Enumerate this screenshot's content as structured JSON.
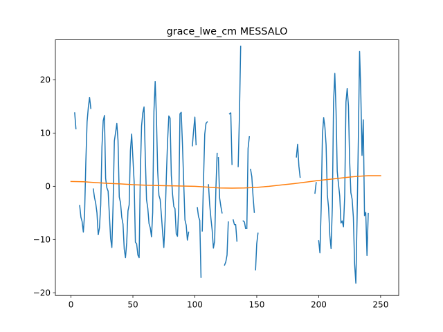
{
  "chart_data": {
    "type": "line",
    "title": "grace_lwe_cm MESSALO",
    "xlabel": "",
    "ylabel": "",
    "xlim": [
      -12.6,
      264.6
    ],
    "ylim": [
      -20.5,
      27.5
    ],
    "xticks": [
      0,
      50,
      100,
      150,
      200,
      250
    ],
    "yticks": [
      -20,
      -10,
      0,
      10,
      20
    ],
    "xtick_labels": [
      "0",
      "50",
      "100",
      "150",
      "200",
      "250"
    ],
    "ytick_labels": [
      "−20",
      "−10",
      "0",
      "10",
      "20"
    ],
    "grid": false,
    "legend": "none",
    "series": [
      {
        "color": "#1f77b4",
        "segments": [
          [
            [
              3,
              13.8
            ],
            [
              4,
              10.8
            ]
          ],
          [
            [
              7,
              -3.6
            ],
            [
              8,
              -5.8
            ],
            [
              9,
              -6.6
            ],
            [
              10,
              -8.6
            ],
            [
              11,
              -5.2
            ],
            [
              12,
              4.5
            ],
            [
              13,
              12.1
            ],
            [
              14,
              14.8
            ],
            [
              15,
              16.7
            ],
            [
              16,
              14.6
            ]
          ],
          [
            [
              18,
              -0.5
            ],
            [
              19,
              -2.1
            ],
            [
              20,
              -3.2
            ],
            [
              21,
              -5.0
            ],
            [
              22,
              -9.1
            ],
            [
              23,
              -7.8
            ],
            [
              24,
              -3.5
            ],
            [
              25,
              7.4
            ],
            [
              26,
              12.3
            ],
            [
              27,
              13.3
            ],
            [
              28,
              1.5
            ],
            [
              29,
              -0.3
            ],
            [
              30,
              -0.9
            ],
            [
              31,
              -5.3
            ],
            [
              32,
              -9.8
            ],
            [
              33,
              -11.5
            ],
            [
              34,
              -3.4
            ],
            [
              35,
              8.5
            ],
            [
              36,
              10.1
            ],
            [
              37,
              11.8
            ],
            [
              38,
              8.6
            ],
            [
              39,
              -2.0
            ],
            [
              40,
              -3.1
            ],
            [
              41,
              -5.8
            ],
            [
              42,
              -7.1
            ],
            [
              43,
              -11.8
            ],
            [
              44,
              -13.4
            ],
            [
              45,
              -10.5
            ],
            [
              46,
              -4.6
            ],
            [
              47,
              -3.5
            ],
            [
              48,
              6.7
            ],
            [
              49,
              9.8
            ],
            [
              50,
              5.3
            ],
            [
              51,
              0.8
            ],
            [
              52,
              -10.5
            ],
            [
              53,
              -10.8
            ],
            [
              54,
              -12.9
            ],
            [
              55,
              -13.4
            ],
            [
              56,
              2.2
            ],
            [
              57,
              11.3
            ],
            [
              58,
              13.8
            ],
            [
              59,
              14.9
            ],
            [
              60,
              5.5
            ],
            [
              61,
              -2.5
            ],
            [
              62,
              -4.1
            ],
            [
              63,
              -7.0
            ],
            [
              64,
              -7.8
            ],
            [
              65,
              -9.5
            ],
            [
              66,
              -4.9
            ],
            [
              67,
              14.1
            ],
            [
              68,
              19.7
            ],
            [
              69,
              13.0
            ],
            [
              70,
              2.9
            ],
            [
              71,
              -1.7
            ],
            [
              72,
              -2.5
            ],
            [
              73,
              -5.5
            ],
            [
              74,
              -8.8
            ],
            [
              75,
              -11.5
            ],
            [
              76,
              -6.4
            ],
            [
              77,
              1.7
            ],
            [
              78,
              8.5
            ],
            [
              79,
              13.2
            ],
            [
              80,
              12.8
            ],
            [
              81,
              2.1
            ],
            [
              82,
              -1.5
            ],
            [
              83,
              -3.8
            ],
            [
              84,
              -4.2
            ],
            [
              85,
              -8.9
            ],
            [
              86,
              -9.4
            ],
            [
              87,
              -4.0
            ],
            [
              88,
              13.6
            ],
            [
              89,
              13.9
            ],
            [
              90,
              7.9
            ],
            [
              91,
              0.7
            ],
            [
              92,
              -6.3
            ],
            [
              93,
              -7.3
            ],
            [
              94,
              -10.1
            ],
            [
              95,
              -8.6
            ]
          ],
          [
            [
              98,
              7.6
            ],
            [
              99,
              10.5
            ],
            [
              100,
              13.0
            ],
            [
              101,
              7.8
            ]
          ],
          [
            [
              102,
              -4.0
            ],
            [
              103,
              -5.7
            ],
            [
              104,
              -6.4
            ],
            [
              105,
              -17.1
            ]
          ],
          [
            [
              106,
              -8.4
            ],
            [
              107,
              1.1
            ],
            [
              108,
              9.8
            ],
            [
              109,
              11.8
            ],
            [
              110,
              12.1
            ]
          ],
          [
            [
              111,
              0.3
            ],
            [
              112,
              -3.4
            ],
            [
              113,
              -6.0
            ],
            [
              114,
              -8.2
            ],
            [
              115,
              -11.6
            ],
            [
              116,
              -10.3
            ],
            [
              117,
              -0.5
            ],
            [
              118,
              6.2
            ]
          ],
          [
            [
              119,
              5.4
            ],
            [
              120,
              -2.2
            ],
            [
              121,
              -3.8
            ],
            [
              122,
              -5.0
            ]
          ],
          [
            [
              124,
              -14.8
            ],
            [
              125,
              -14.2
            ],
            [
              126,
              -12.9
            ],
            [
              127,
              -6.7
            ]
          ],
          [
            [
              128,
              13.6
            ],
            [
              129,
              13.8
            ],
            [
              130,
              4.1
            ]
          ],
          [
            [
              131,
              -6.3
            ],
            [
              132,
              -7.2
            ],
            [
              133,
              -7.2
            ],
            [
              134,
              -10.3
            ]
          ],
          [
            [
              135,
              3.7
            ],
            [
              136,
              13.2
            ],
            [
              137,
              26.3
            ]
          ],
          [
            [
              139,
              -6.5
            ],
            [
              140,
              -6.7
            ],
            [
              141,
              -7.9
            ]
          ],
          [
            [
              142,
              -7.9
            ],
            [
              143,
              7.1
            ],
            [
              144,
              9.3
            ]
          ],
          [
            [
              145,
              3.2
            ],
            [
              146,
              1.8
            ],
            [
              147,
              -1.9
            ],
            [
              148,
              -4.9
            ]
          ],
          [
            [
              149,
              -15.7
            ],
            [
              150,
              -10.8
            ],
            [
              151,
              -8.8
            ]
          ],
          [
            [
              182,
              5.5
            ],
            [
              183,
              7.9
            ],
            [
              184,
              3.8
            ],
            [
              185,
              1.7
            ]
          ],
          [
            [
              197,
              -1.3
            ],
            [
              198,
              0.7
            ]
          ],
          [
            [
              200,
              -10.2
            ],
            [
              201,
              -12.5
            ],
            [
              202,
              -4.1
            ],
            [
              203,
              9.6
            ],
            [
              204,
              12.9
            ],
            [
              205,
              11.1
            ],
            [
              206,
              7.8
            ],
            [
              207,
              -1.6
            ],
            [
              208,
              -4.0
            ],
            [
              209,
              -9.2
            ],
            [
              210,
              -11.7
            ],
            [
              211,
              -3.9
            ],
            [
              212,
              15.8
            ],
            [
              213,
              21.2
            ],
            [
              214,
              14.1
            ],
            [
              215,
              2.8
            ],
            [
              216,
              0.4
            ],
            [
              217,
              -1.8
            ],
            [
              218,
              -6.9
            ],
            [
              219,
              -6.5
            ],
            [
              220,
              -7.6
            ],
            [
              221,
              -1.8
            ],
            [
              222,
              15.8
            ],
            [
              223,
              18.4
            ],
            [
              224,
              15.1
            ],
            [
              225,
              4.9
            ],
            [
              226,
              -1.2
            ],
            [
              227,
              -2.4
            ],
            [
              228,
              -5.8
            ],
            [
              229,
              -14.6
            ],
            [
              230,
              -18.2
            ],
            [
              231,
              -5.9
            ],
            [
              232,
              8.8
            ],
            [
              233,
              25.3
            ],
            [
              234,
              17.9
            ],
            [
              235,
              5.8
            ],
            [
              236,
              12.5
            ],
            [
              237,
              -5.5
            ],
            [
              238,
              -4.9
            ],
            [
              239,
              -13.0
            ],
            [
              240,
              -5.1
            ]
          ]
        ]
      },
      {
        "color": "#ff7f0e",
        "segments": [
          [
            [
              0,
              0.9
            ],
            [
              10,
              0.85
            ],
            [
              20,
              0.7
            ],
            [
              30,
              0.55
            ],
            [
              40,
              0.45
            ],
            [
              50,
              0.3
            ],
            [
              60,
              0.2
            ],
            [
              70,
              0.15
            ],
            [
              80,
              0.1
            ],
            [
              90,
              0.05
            ],
            [
              100,
              0.0
            ],
            [
              110,
              -0.15
            ],
            [
              120,
              -0.3
            ],
            [
              130,
              -0.35
            ],
            [
              140,
              -0.3
            ],
            [
              150,
              -0.2
            ],
            [
              160,
              0.0
            ],
            [
              170,
              0.25
            ],
            [
              180,
              0.5
            ],
            [
              190,
              0.8
            ],
            [
              200,
              1.1
            ],
            [
              210,
              1.35
            ],
            [
              220,
              1.6
            ],
            [
              230,
              1.85
            ],
            [
              240,
              2.0
            ],
            [
              250,
              2.0
            ]
          ]
        ]
      }
    ]
  }
}
